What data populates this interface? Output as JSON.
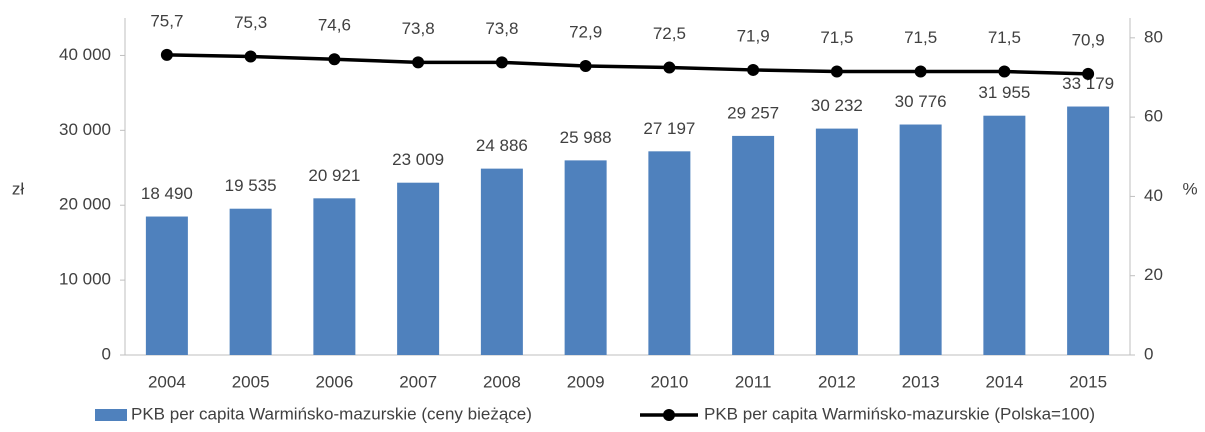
{
  "chart_data": {
    "type": "bar_line",
    "categories": [
      "2004",
      "2005",
      "2006",
      "2007",
      "2008",
      "2009",
      "2010",
      "2011",
      "2012",
      "2013",
      "2014",
      "2015"
    ],
    "series": [
      {
        "name": "PKB per capita Warmińsko-mazurskie (ceny bieżące)",
        "type": "bar",
        "color": "#4f81bd",
        "values": [
          18490,
          19535,
          20921,
          23009,
          24886,
          25988,
          27197,
          29257,
          30232,
          30776,
          31955,
          33179
        ],
        "value_labels": [
          "18 490",
          "19 535",
          "20 921",
          "23 009",
          "24 886",
          "25 988",
          "27 197",
          "29 257",
          "30 232",
          "30 776",
          "31 955",
          "33 179"
        ]
      },
      {
        "name": "PKB per capita Warmińsko-mazurskie (Polska=100)",
        "type": "line",
        "axis": "y2",
        "color": "#000000",
        "values": [
          75.7,
          75.3,
          74.6,
          73.8,
          73.8,
          72.9,
          72.5,
          71.9,
          71.5,
          71.5,
          71.5,
          70.9
        ],
        "value_labels": [
          "75,7",
          "75,3",
          "74,6",
          "73,8",
          "73,8",
          "72,9",
          "72,5",
          "71,9",
          "71,5",
          "71,5",
          "71,5",
          "70,9"
        ]
      }
    ],
    "ylabel": "zł",
    "y2label": "%",
    "ylim": [
      0,
      45000
    ],
    "yticks": [
      0,
      {
        "value": 10000,
        "label": "10 000"
      },
      {
        "value": 20000,
        "label": "20 000"
      },
      {
        "value": 30000,
        "label": "30 000"
      },
      {
        "value": 40000,
        "label": "40 000"
      }
    ],
    "y2lim": [
      0,
      85
    ],
    "y2ticks": [
      0,
      20,
      40,
      60,
      80
    ],
    "grid": false,
    "legend": "bottom"
  }
}
